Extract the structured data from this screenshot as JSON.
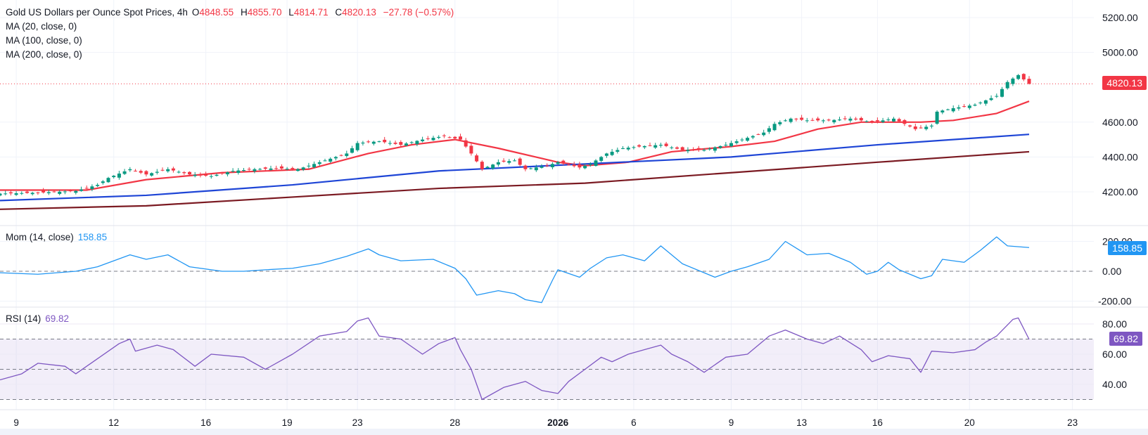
{
  "header": {
    "title": "Gold US Dollars per Ounce Spot Prices, 4h",
    "open_label": "O",
    "open": "4848.55",
    "high_label": "H",
    "high": "4855.70",
    "low_label": "L",
    "low": "4814.71",
    "close_label": "C",
    "close": "4820.13",
    "change": "−27.78 (−0.57%)",
    "indicators": [
      "MA (20, close, 0)",
      "MA (100, close, 0)",
      "MA (200, close, 0)"
    ]
  },
  "colors": {
    "up": "#089981",
    "down": "#f23645",
    "ma20": "#f23645",
    "ma100": "#1e45d6",
    "ma200": "#7b1a22",
    "mom": "#2196f3",
    "rsi": "#7e57c2"
  },
  "chart_data": [
    {
      "type": "candlestick",
      "x_ticks": [
        {
          "bar": 3,
          "label": "9"
        },
        {
          "bar": 21,
          "label": "12"
        },
        {
          "bar": 38,
          "label": "16"
        },
        {
          "bar": 53,
          "label": "19"
        },
        {
          "bar": 66,
          "label": "23"
        },
        {
          "bar": 84,
          "label": "28"
        },
        {
          "bar": 103,
          "label": "2026",
          "bold": true
        },
        {
          "bar": 117,
          "label": "6"
        },
        {
          "bar": 135,
          "label": "9"
        },
        {
          "bar": 148,
          "label": "13"
        },
        {
          "bar": 162,
          "label": "16"
        },
        {
          "bar": 179,
          "label": "20"
        },
        {
          "bar": 198,
          "label": "23"
        }
      ],
      "ylim": [
        4090,
        5260
      ],
      "y_ticks": [
        {
          "v": 4200,
          "label": "4200.00"
        },
        {
          "v": 4400,
          "label": "4400.00"
        },
        {
          "v": 4600,
          "label": "4600.00"
        },
        {
          "v": 5000,
          "label": "5000.00"
        },
        {
          "v": 5200,
          "label": "5200.00"
        }
      ],
      "last_price": 4820.13,
      "last_price_label": "4820.13",
      "close": [
        [
          0,
          4190
        ],
        [
          7,
          4195
        ],
        [
          14,
          4205
        ],
        [
          18,
          4240
        ],
        [
          20,
          4280
        ],
        [
          24,
          4330
        ],
        [
          27,
          4300
        ],
        [
          31,
          4330
        ],
        [
          35,
          4300
        ],
        [
          39,
          4290
        ],
        [
          43,
          4320
        ],
        [
          47,
          4330
        ],
        [
          51,
          4335
        ],
        [
          55,
          4330
        ],
        [
          59,
          4370
        ],
        [
          64,
          4420
        ],
        [
          66,
          4480
        ],
        [
          70,
          4490
        ],
        [
          74,
          4470
        ],
        [
          78,
          4500
        ],
        [
          82,
          4520
        ],
        [
          85,
          4500
        ],
        [
          87,
          4420
        ],
        [
          89,
          4330
        ],
        [
          92,
          4370
        ],
        [
          95,
          4380
        ],
        [
          97,
          4330
        ],
        [
          101,
          4350
        ],
        [
          103,
          4370
        ],
        [
          107,
          4340
        ],
        [
          109,
          4360
        ],
        [
          112,
          4420
        ],
        [
          115,
          4450
        ],
        [
          118,
          4460
        ],
        [
          122,
          4470
        ],
        [
          126,
          4440
        ],
        [
          130,
          4440
        ],
        [
          134,
          4470
        ],
        [
          138,
          4510
        ],
        [
          141,
          4540
        ],
        [
          143,
          4590
        ],
        [
          146,
          4620
        ],
        [
          149,
          4610
        ],
        [
          153,
          4610
        ],
        [
          157,
          4620
        ],
        [
          161,
          4600
        ],
        [
          165,
          4620
        ],
        [
          169,
          4560
        ],
        [
          172,
          4580
        ],
        [
          173,
          4660
        ],
        [
          176,
          4680
        ],
        [
          180,
          4700
        ],
        [
          184,
          4750
        ],
        [
          186,
          4830
        ],
        [
          188,
          4870
        ],
        [
          190,
          4820.13
        ]
      ],
      "series": [
        {
          "name": "MA (20, close, 0)",
          "color_key": "ma20",
          "points": [
            [
              0,
              4210
            ],
            [
              16,
              4210
            ],
            [
              27,
              4270
            ],
            [
              41,
              4310
            ],
            [
              57,
              4330
            ],
            [
              68,
              4420
            ],
            [
              76,
              4470
            ],
            [
              84,
              4500
            ],
            [
              92,
              4450
            ],
            [
              103,
              4370
            ],
            [
              108,
              4350
            ],
            [
              116,
              4370
            ],
            [
              124,
              4430
            ],
            [
              135,
              4460
            ],
            [
              143,
              4490
            ],
            [
              151,
              4560
            ],
            [
              159,
              4600
            ],
            [
              170,
              4600
            ],
            [
              176,
              4610
            ],
            [
              184,
              4650
            ],
            [
              190,
              4720
            ]
          ]
        },
        {
          "name": "MA (100, close, 0)",
          "color_key": "ma100",
          "points": [
            [
              0,
              4150
            ],
            [
              27,
              4180
            ],
            [
              54,
              4240
            ],
            [
              81,
              4320
            ],
            [
              108,
              4360
            ],
            [
              135,
              4400
            ],
            [
              162,
              4470
            ],
            [
              190,
              4530
            ]
          ]
        },
        {
          "name": "MA (200, close, 0)",
          "color_key": "ma200",
          "points": [
            [
              0,
              4100
            ],
            [
              27,
              4120
            ],
            [
              54,
              4170
            ],
            [
              81,
              4220
            ],
            [
              108,
              4250
            ],
            [
              135,
              4310
            ],
            [
              162,
              4370
            ],
            [
              190,
              4430
            ]
          ]
        }
      ]
    },
    {
      "type": "line",
      "name": "Mom (14, close)",
      "value_label": "158.85",
      "ylim": [
        -250,
        300
      ],
      "y_ticks": [
        {
          "v": 200,
          "label": "200.00"
        },
        {
          "v": 0,
          "label": "0.00"
        },
        {
          "v": -200,
          "label": "-200.00"
        }
      ],
      "points": [
        [
          0,
          -10
        ],
        [
          7,
          -20
        ],
        [
          14,
          0
        ],
        [
          18,
          30
        ],
        [
          24,
          110
        ],
        [
          27,
          80
        ],
        [
          31,
          110
        ],
        [
          35,
          30
        ],
        [
          41,
          0
        ],
        [
          45,
          0
        ],
        [
          49,
          10
        ],
        [
          54,
          20
        ],
        [
          59,
          50
        ],
        [
          64,
          100
        ],
        [
          68,
          150
        ],
        [
          70,
          110
        ],
        [
          74,
          70
        ],
        [
          80,
          80
        ],
        [
          84,
          20
        ],
        [
          86,
          -50
        ],
        [
          88,
          -160
        ],
        [
          92,
          -130
        ],
        [
          95,
          -150
        ],
        [
          97,
          -190
        ],
        [
          100,
          -210
        ],
        [
          102,
          -60
        ],
        [
          103,
          10
        ],
        [
          107,
          -40
        ],
        [
          109,
          20
        ],
        [
          112,
          90
        ],
        [
          115,
          110
        ],
        [
          119,
          70
        ],
        [
          122,
          170
        ],
        [
          126,
          50
        ],
        [
          130,
          -10
        ],
        [
          132,
          -40
        ],
        [
          135,
          0
        ],
        [
          138,
          30
        ],
        [
          142,
          80
        ],
        [
          145,
          200
        ],
        [
          149,
          110
        ],
        [
          153,
          120
        ],
        [
          157,
          60
        ],
        [
          160,
          -20
        ],
        [
          162,
          0
        ],
        [
          164,
          60
        ],
        [
          166,
          10
        ],
        [
          170,
          -50
        ],
        [
          172,
          -30
        ],
        [
          174,
          80
        ],
        [
          178,
          60
        ],
        [
          181,
          140
        ],
        [
          184,
          230
        ],
        [
          186,
          170
        ],
        [
          190,
          158.85
        ]
      ]
    },
    {
      "type": "line",
      "name": "RSI (14)",
      "value_label": "69.82",
      "ylim": [
        22,
        90
      ],
      "band": [
        30,
        70
      ],
      "midline": 50,
      "y_ticks": [
        {
          "v": 80,
          "label": "80.00"
        },
        {
          "v": 60,
          "label": "60.00"
        },
        {
          "v": 40,
          "label": "40.00"
        }
      ],
      "points": [
        [
          0,
          43
        ],
        [
          4,
          47
        ],
        [
          7,
          54
        ],
        [
          12,
          52
        ],
        [
          14,
          47
        ],
        [
          18,
          57
        ],
        [
          22,
          67
        ],
        [
          24,
          70
        ],
        [
          25,
          62
        ],
        [
          29,
          66
        ],
        [
          32,
          63
        ],
        [
          36,
          52
        ],
        [
          39,
          60
        ],
        [
          45,
          58
        ],
        [
          49,
          50
        ],
        [
          54,
          60
        ],
        [
          59,
          72
        ],
        [
          64,
          75
        ],
        [
          66,
          82
        ],
        [
          68,
          84
        ],
        [
          70,
          72
        ],
        [
          74,
          70
        ],
        [
          78,
          60
        ],
        [
          81,
          67
        ],
        [
          84,
          71
        ],
        [
          85,
          63
        ],
        [
          87,
          50
        ],
        [
          89,
          30
        ],
        [
          93,
          38
        ],
        [
          97,
          42
        ],
        [
          100,
          36
        ],
        [
          103,
          34
        ],
        [
          105,
          42
        ],
        [
          108,
          50
        ],
        [
          111,
          58
        ],
        [
          113,
          55
        ],
        [
          116,
          60
        ],
        [
          119,
          63
        ],
        [
          122,
          66
        ],
        [
          124,
          60
        ],
        [
          127,
          55
        ],
        [
          130,
          48
        ],
        [
          134,
          58
        ],
        [
          138,
          60
        ],
        [
          142,
          72
        ],
        [
          145,
          76
        ],
        [
          149,
          70
        ],
        [
          152,
          67
        ],
        [
          155,
          72
        ],
        [
          159,
          63
        ],
        [
          161,
          55
        ],
        [
          164,
          59
        ],
        [
          168,
          57
        ],
        [
          170,
          48
        ],
        [
          172,
          62
        ],
        [
          176,
          61
        ],
        [
          180,
          63
        ],
        [
          182,
          68
        ],
        [
          184,
          72
        ],
        [
          187,
          83
        ],
        [
          188,
          84
        ],
        [
          190,
          69.82
        ]
      ]
    }
  ]
}
